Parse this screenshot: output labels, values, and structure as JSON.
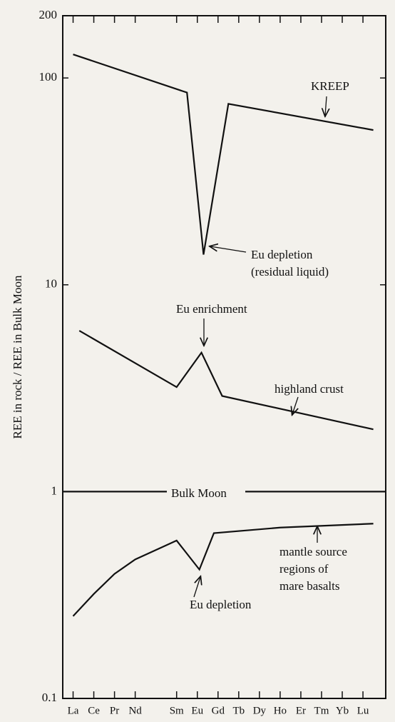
{
  "chart_data": {
    "type": "line",
    "y_label": "REE in rock / REE in Bulk Moon",
    "log_scale": true,
    "xlim": [
      56.5,
      72.1
    ],
    "ylim": [
      0.1,
      200
    ],
    "xticks": [
      {
        "value": 57,
        "label": "La"
      },
      {
        "value": 58,
        "label": "Ce"
      },
      {
        "value": 59,
        "label": "Pr"
      },
      {
        "value": 60,
        "label": "Nd"
      },
      {
        "value": 62,
        "label": "Sm"
      },
      {
        "value": 63,
        "label": "Eu"
      },
      {
        "value": 64,
        "label": "Gd"
      },
      {
        "value": 65,
        "label": "Tb"
      },
      {
        "value": 66,
        "label": "Dy"
      },
      {
        "value": 67,
        "label": "Ho"
      },
      {
        "value": 68,
        "label": "Er"
      },
      {
        "value": 69,
        "label": "Tm"
      },
      {
        "value": 70,
        "label": "Yb"
      },
      {
        "value": 71,
        "label": "Lu"
      }
    ],
    "yticks": [
      0.1,
      1,
      10,
      100,
      200
    ],
    "series": [
      {
        "color": "#111111",
        "x": [
          57,
          62.5,
          63.3,
          64.5,
          71.5
        ],
        "values": [
          130,
          85,
          14,
          75,
          56
        ]
      },
      {
        "color": "#111111",
        "x": [
          57.3,
          62,
          63.2,
          64.2,
          71.5
        ],
        "values": [
          6.0,
          3.2,
          4.7,
          2.9,
          2.0
        ]
      },
      {
        "color": "#111111",
        "x": [
          56.5,
          72.1
        ],
        "values": [
          1,
          1
        ]
      },
      {
        "color": "#111111",
        "x": [
          57,
          58,
          59,
          60,
          62,
          63.1,
          63.8,
          67,
          71.5
        ],
        "values": [
          0.25,
          0.32,
          0.4,
          0.47,
          0.58,
          0.42,
          0.63,
          0.67,
          0.7
        ]
      }
    ],
    "annotations": [
      {
        "lines": [
          "KREEP"
        ]
      },
      {
        "lines": [
          "Eu depletion",
          "(residual liquid)"
        ]
      },
      {
        "lines": [
          "Eu enrichment"
        ]
      },
      {
        "lines": [
          "highland crust"
        ]
      },
      {
        "lines": [
          "Bulk Moon"
        ]
      },
      {
        "lines": [
          "mantle source",
          "regions of",
          "mare basalts"
        ]
      },
      {
        "lines": [
          "Eu depletion"
        ]
      }
    ]
  }
}
